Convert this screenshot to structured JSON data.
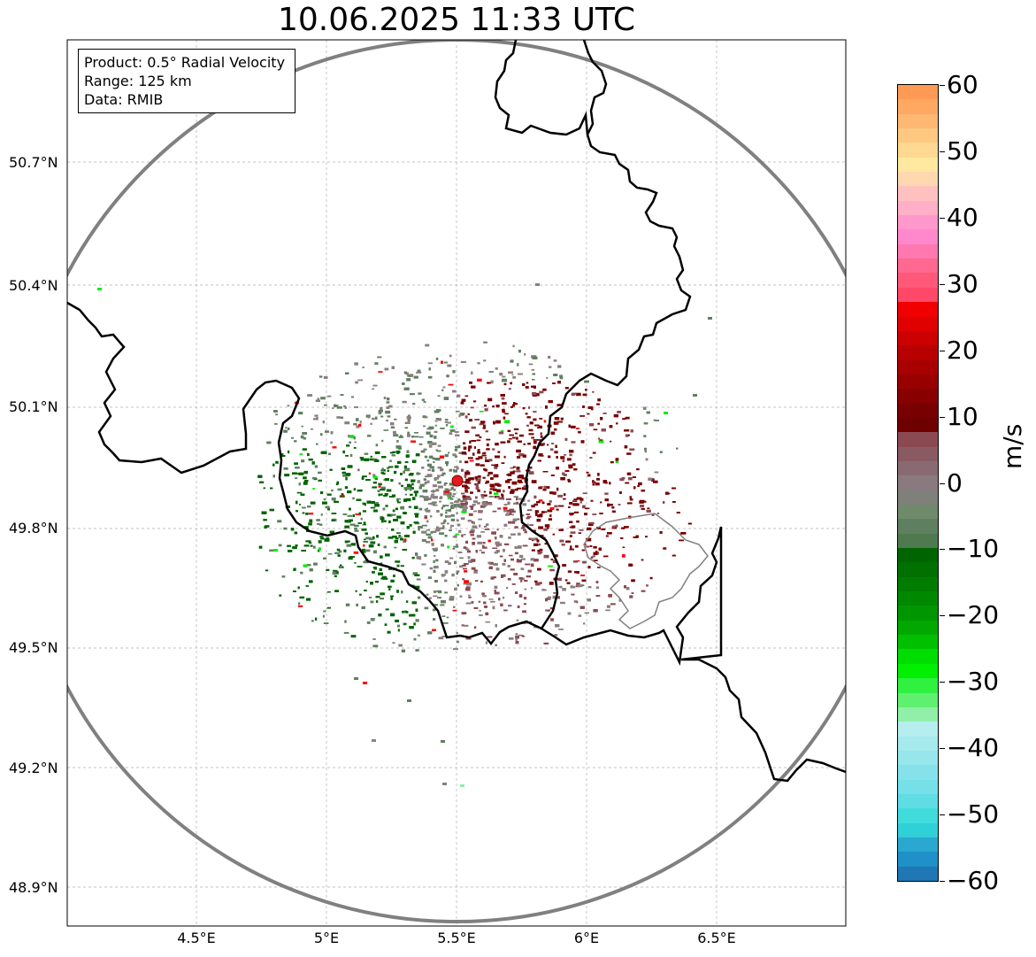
{
  "title": "10.06.2025 11:33 UTC",
  "info": {
    "product": "Product: 0.5° Radial Velocity",
    "range": "Range: 125 km",
    "data": "Data: RMIB"
  },
  "axes": {
    "y_ticks": [
      "50.7°N",
      "50.4°N",
      "50.1°N",
      "49.8°N",
      "49.5°N",
      "49.2°N",
      "48.9°N"
    ],
    "x_ticks": [
      "4.5°E",
      "5°E",
      "5.5°E",
      "6°E",
      "6.5°E"
    ]
  },
  "colorbar": {
    "unit": "m/s",
    "ticks": [
      "60",
      "50",
      "40",
      "30",
      "20",
      "10",
      "0",
      "−10",
      "−20",
      "−30",
      "−40",
      "−50",
      "−60"
    ],
    "colors": {
      "fold_out": "#1f77b4",
      "cyan_hi": "#30dcdc",
      "cyan_lo": "#b6eef0",
      "light_green": "#90f0a8",
      "green": "#00ee00",
      "dark_green": "#006400",
      "grey_green": "#5f8060",
      "grey": "#8a7f80",
      "mauve": "#8b4a52",
      "maroon": "#780000",
      "red": "#ff0000",
      "pink": "#ff6a8e",
      "light_pink": "#ffb6c1",
      "peach": "#ffe0a0",
      "orange": "#ff9a55"
    }
  },
  "radar": {
    "site_marker_color": "#e41a1c",
    "range_ring_color": "#808080",
    "border_color": "#000000"
  }
}
